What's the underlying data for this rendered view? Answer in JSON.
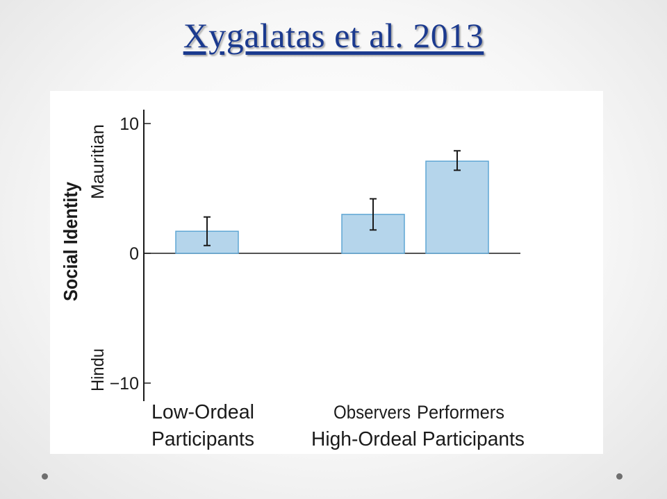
{
  "slide": {
    "title": "Xygalatas et al. 2013"
  },
  "chart_data": {
    "type": "bar",
    "title": "",
    "ylabel": "Social Identity",
    "y_top_label": "Mauritian",
    "y_bottom_label": "Hindu",
    "ylim": [
      -10,
      10
    ],
    "yticks": [
      {
        "value": 10,
        "label": "10"
      },
      {
        "value": 0,
        "label": "0"
      },
      {
        "value": -10,
        "label": "−10"
      }
    ],
    "categories": [
      "Low-Ordeal Participants",
      "Observers",
      "Performers"
    ],
    "values": [
      1.7,
      3.0,
      7.1
    ],
    "error_low": [
      0.6,
      1.8,
      6.4
    ],
    "error_high": [
      2.8,
      4.2,
      7.9
    ],
    "group_labels": [
      {
        "line1": "Low-Ordeal",
        "line2": "Participants"
      },
      {
        "line1": "Observers",
        "line1b": "Performers",
        "line2": "High-Ordeal Participants"
      }
    ],
    "grid": false,
    "colors": {
      "bar_fill": "#b5d5eb",
      "bar_stroke": "#5fa6d4",
      "axis": "#1a1a1a"
    }
  }
}
